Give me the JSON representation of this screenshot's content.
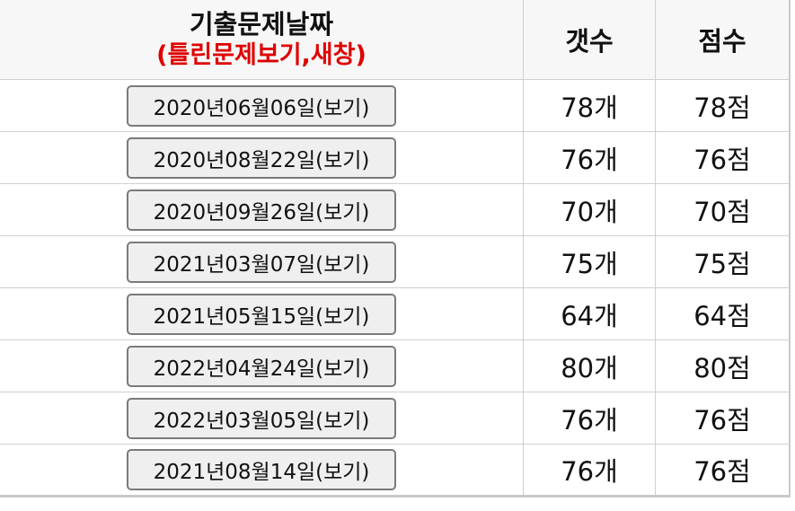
{
  "header": {
    "date_title": "기출문제날짜",
    "date_subtitle": "(틀린문제보기,새창)",
    "count_title": "갯수",
    "score_title": "점수"
  },
  "rows": [
    {
      "button": "2020년06월06일(보기)",
      "count": "78개",
      "score": "78점"
    },
    {
      "button": "2020년08월22일(보기)",
      "count": "76개",
      "score": "76점"
    },
    {
      "button": "2020년09월26일(보기)",
      "count": "70개",
      "score": "70점"
    },
    {
      "button": "2021년03월07일(보기)",
      "count": "75개",
      "score": "75점"
    },
    {
      "button": "2021년05월15일(보기)",
      "count": "64개",
      "score": "64점"
    },
    {
      "button": "2022년04월24일(보기)",
      "count": "80개",
      "score": "80점"
    },
    {
      "button": "2022년03월05일(보기)",
      "count": "76개",
      "score": "76점"
    },
    {
      "button": "2021년08월14일(보기)",
      "count": "76개",
      "score": "76점"
    }
  ],
  "colors": {
    "subtitle": "#e00000",
    "header_bg": "#f7f7f7",
    "button_bg": "#efefef"
  }
}
